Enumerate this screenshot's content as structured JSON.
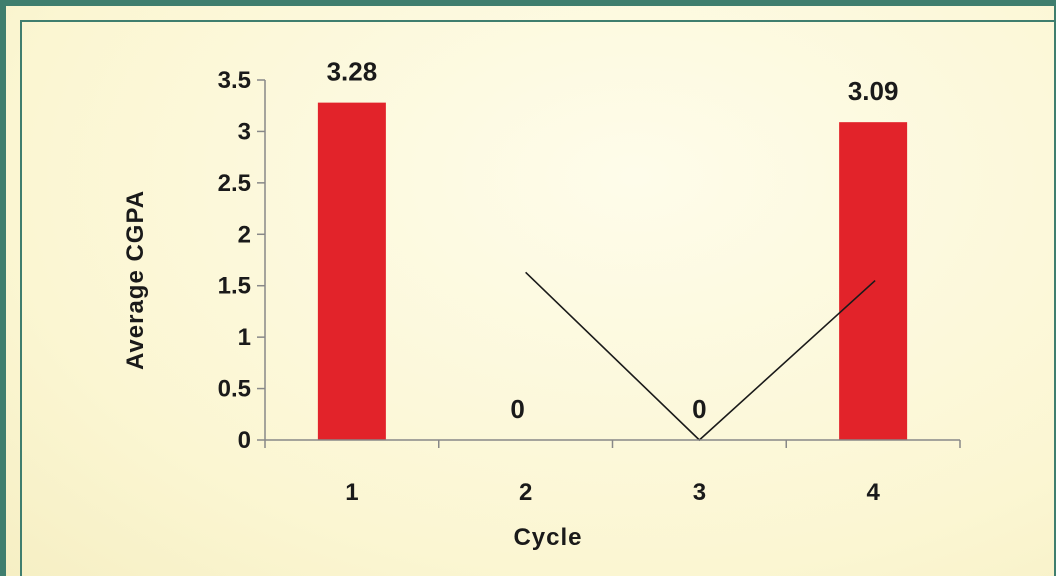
{
  "chart_data": {
    "type": "bar",
    "categories": [
      "1",
      "2",
      "3",
      "4"
    ],
    "values": [
      3.28,
      0,
      0,
      3.09
    ],
    "data_labels": [
      "3.28",
      "0",
      "0",
      "3.09"
    ],
    "xlabel": "Cycle",
    "ylabel": "Average CGPA",
    "ylim": [
      0,
      3.5
    ],
    "yticks": [
      "0",
      "0.5",
      "1",
      "1.5",
      "2",
      "2.5",
      "3",
      "3.5"
    ],
    "grid": false,
    "legend": "none",
    "bar_color": "#e2232a",
    "trend_line": {
      "color": "#1a1a1a",
      "points": [
        {
          "x": 2,
          "y": 1.63
        },
        {
          "x": 3,
          "y": 0
        },
        {
          "x": 4,
          "y": 1.55
        }
      ]
    }
  }
}
